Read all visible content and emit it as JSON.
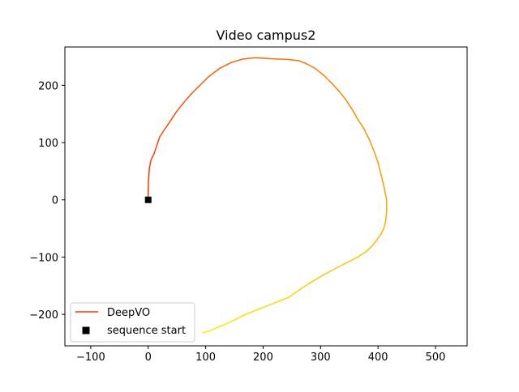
{
  "chart_data": {
    "type": "line",
    "title": "Video campus2",
    "xlabel": "",
    "ylabel": "",
    "xlim": [
      -145,
      555
    ],
    "ylim": [
      -255,
      267
    ],
    "xticks": [
      -100,
      0,
      100,
      200,
      300,
      400,
      500
    ],
    "yticks": [
      -200,
      -100,
      0,
      100,
      200
    ],
    "xtick_labels": [
      "−100",
      "0",
      "100",
      "200",
      "300",
      "400",
      "500"
    ],
    "ytick_labels": [
      "−200",
      "−100",
      "0",
      "100",
      "200"
    ],
    "grid": false,
    "legend": {
      "position": "lower-left",
      "entries": [
        "DeepVO",
        "sequence start"
      ]
    },
    "colors": {
      "start_color": "#ff3300",
      "end_color": "#ffee00",
      "marker": "#000000"
    },
    "series": [
      {
        "name": "DeepVO",
        "x": [
          0,
          0,
          1,
          2,
          5,
          10,
          15,
          20,
          30,
          40,
          50,
          62,
          75,
          90,
          105,
          125,
          145,
          165,
          185,
          205,
          225,
          245,
          262,
          275,
          290,
          305,
          320,
          332,
          344,
          355,
          365,
          375,
          385,
          393,
          400,
          405,
          410,
          413,
          415,
          415,
          414,
          413,
          410,
          405,
          398,
          390,
          380,
          365,
          345,
          322,
          300,
          280,
          262,
          245,
          225,
          205,
          185,
          165,
          150,
          135,
          120,
          107,
          95
        ],
        "y": [
          0,
          20,
          40,
          55,
          70,
          80,
          95,
          110,
          125,
          140,
          155,
          170,
          185,
          200,
          215,
          230,
          240,
          246,
          248,
          247,
          246,
          245,
          243,
          238,
          230,
          218,
          203,
          190,
          175,
          158,
          140,
          125,
          105,
          85,
          65,
          45,
          25,
          10,
          0,
          -20,
          -30,
          -40,
          -50,
          -60,
          -70,
          -80,
          -90,
          -100,
          -110,
          -122,
          -134,
          -146,
          -158,
          -170,
          -178,
          -186,
          -194,
          -202,
          -210,
          -217,
          -223,
          -229,
          -232
        ]
      }
    ],
    "markers": [
      {
        "name": "sequence start",
        "x": 0,
        "y": 0,
        "shape": "square"
      }
    ]
  }
}
